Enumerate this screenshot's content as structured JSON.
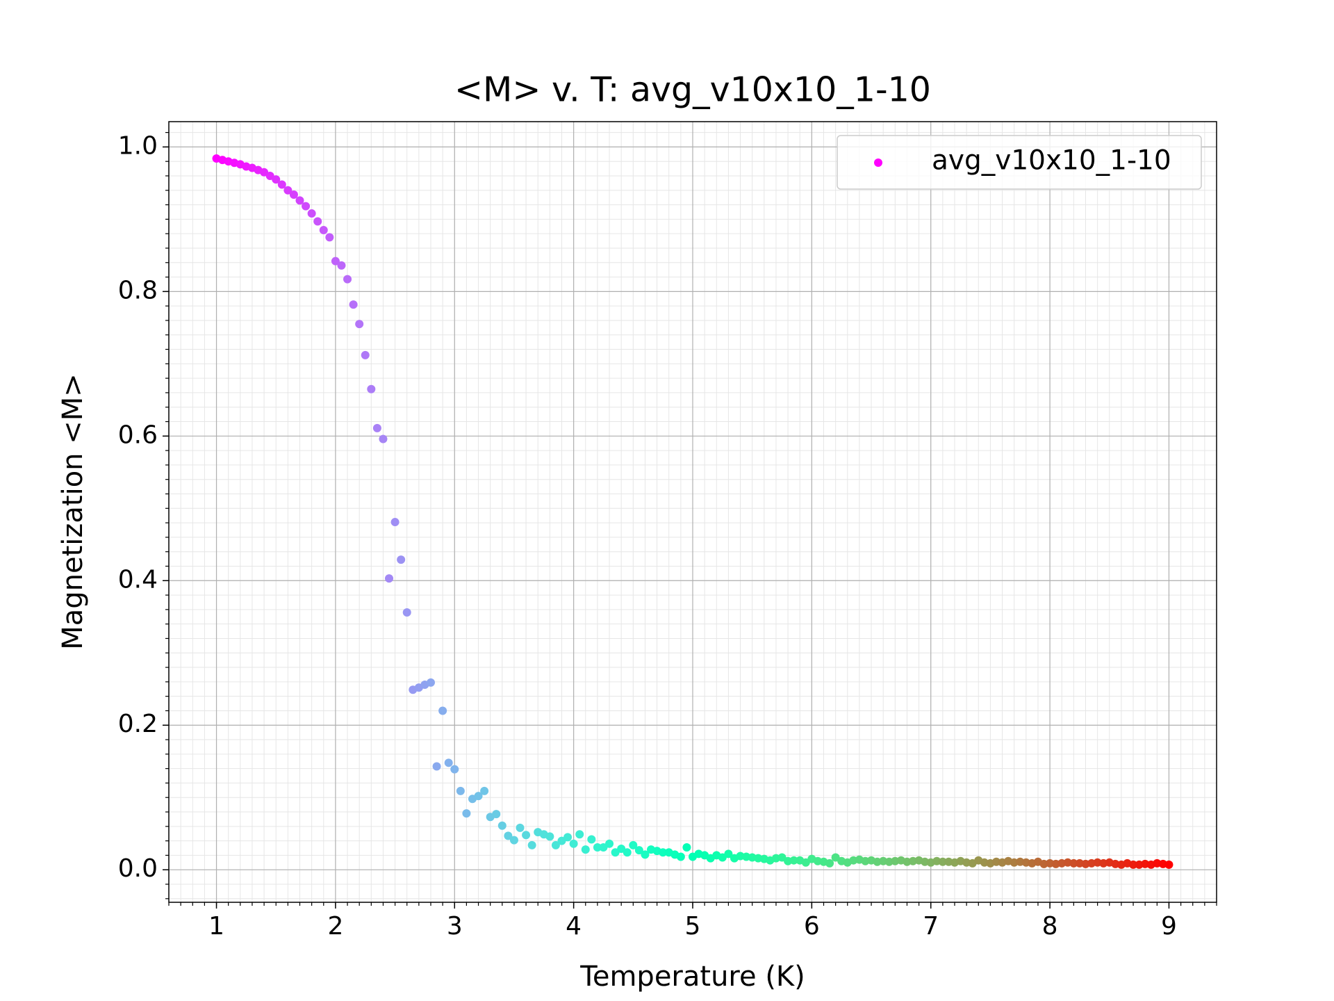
{
  "chart_data": {
    "type": "scatter",
    "title": "<M> v. T: avg_v10x10_1-10",
    "xlabel": "Temperature (K)",
    "ylabel": "Magnetization <M>",
    "legend": "upper right",
    "grid": true,
    "minor_grid": true,
    "xminor": 0.1,
    "yminor": 0.02,
    "colormap": "rainbow",
    "xlim": [
      0.6,
      9.4
    ],
    "ylim": [
      -0.045,
      1.035
    ],
    "xticks": [
      1,
      2,
      3,
      4,
      5,
      6,
      7,
      8,
      9
    ],
    "yticks": [
      {
        "value": 0,
        "label": "0.0"
      },
      0.2,
      0.4,
      0.6,
      0.8,
      {
        "value": 1,
        "label": "1.0"
      }
    ],
    "x": [
      1,
      1.05,
      1.1,
      1.15,
      1.2,
      1.25,
      1.3,
      1.35,
      1.4,
      1.45,
      1.5,
      1.55,
      1.6,
      1.65,
      1.7,
      1.75,
      1.8,
      1.85,
      1.9,
      1.95,
      2,
      2.05,
      2.1,
      2.15,
      2.2,
      2.25,
      2.3,
      2.35,
      2.4,
      2.45,
      2.5,
      2.55,
      2.6,
      2.65,
      2.7,
      2.75,
      2.8,
      2.85,
      2.9,
      2.95,
      3,
      3.05,
      3.1,
      3.15,
      3.2,
      3.25,
      3.3,
      3.35,
      3.4,
      3.45,
      3.5,
      3.55,
      3.6,
      3.65,
      3.7,
      3.75,
      3.8,
      3.85,
      3.9,
      3.95,
      4,
      4.05,
      4.1,
      4.15,
      4.2,
      4.25,
      4.3,
      4.35,
      4.4,
      4.45,
      4.5,
      4.55,
      4.6,
      4.65,
      4.7,
      4.75,
      4.8,
      4.85,
      4.9,
      4.95,
      5,
      5.05,
      5.1,
      5.15,
      5.2,
      5.25,
      5.3,
      5.35,
      5.4,
      5.45,
      5.5,
      5.55,
      5.6,
      5.65,
      5.7,
      5.75,
      5.8,
      5.85,
      5.9,
      5.95,
      6,
      6.05,
      6.1,
      6.15,
      6.2,
      6.25,
      6.3,
      6.35,
      6.4,
      6.45,
      6.5,
      6.55,
      6.6,
      6.65,
      6.7,
      6.75,
      6.8,
      6.85,
      6.9,
      6.95,
      7,
      7.05,
      7.1,
      7.15,
      7.2,
      7.25,
      7.3,
      7.35,
      7.4,
      7.45,
      7.5,
      7.55,
      7.6,
      7.65,
      7.7,
      7.75,
      7.8,
      7.85,
      7.9,
      7.95,
      8,
      8.05,
      8.1,
      8.15,
      8.2,
      8.25,
      8.3,
      8.35,
      8.4,
      8.45,
      8.5,
      8.55,
      8.6,
      8.65,
      8.7,
      8.75,
      8.8,
      8.85,
      8.9,
      8.95,
      9
    ],
    "series": [
      {
        "name": "avg_v10x10_1-10",
        "values": [
          0.984,
          0.982,
          0.98,
          0.978,
          0.976,
          0.973,
          0.971,
          0.968,
          0.965,
          0.96,
          0.955,
          0.948,
          0.94,
          0.934,
          0.926,
          0.918,
          0.908,
          0.897,
          0.885,
          0.875,
          0.842,
          0.836,
          0.817,
          0.782,
          0.755,
          0.712,
          0.665,
          0.611,
          0.596,
          0.403,
          0.481,
          0.429,
          0.356,
          0.249,
          0.252,
          0.256,
          0.259,
          0.143,
          0.22,
          0.148,
          0.139,
          0.109,
          0.078,
          0.098,
          0.102,
          0.109,
          0.073,
          0.077,
          0.061,
          0.047,
          0.041,
          0.058,
          0.048,
          0.034,
          0.052,
          0.049,
          0.046,
          0.034,
          0.04,
          0.045,
          0.036,
          0.049,
          0.028,
          0.042,
          0.031,
          0.031,
          0.036,
          0.024,
          0.029,
          0.024,
          0.034,
          0.027,
          0.021,
          0.028,
          0.026,
          0.024,
          0.024,
          0.021,
          0.018,
          0.031,
          0.018,
          0.022,
          0.02,
          0.016,
          0.02,
          0.017,
          0.022,
          0.016,
          0.019,
          0.018,
          0.017,
          0.016,
          0.015,
          0.013,
          0.016,
          0.017,
          0.012,
          0.013,
          0.013,
          0.01,
          0.015,
          0.012,
          0.011,
          0.009,
          0.017,
          0.012,
          0.01,
          0.013,
          0.014,
          0.012,
          0.013,
          0.011,
          0.012,
          0.011,
          0.012,
          0.013,
          0.011,
          0.012,
          0.013,
          0.011,
          0.01,
          0.012,
          0.011,
          0.011,
          0.01,
          0.012,
          0.01,
          0.009,
          0.013,
          0.01,
          0.009,
          0.011,
          0.01,
          0.012,
          0.01,
          0.011,
          0.01,
          0.009,
          0.011,
          0.008,
          0.009,
          0.008,
          0.009,
          0.01,
          0.009,
          0.009,
          0.008,
          0.009,
          0.01,
          0.009,
          0.01,
          0.008,
          0.007,
          0.009,
          0.007,
          0.007,
          0.008,
          0.007,
          0.009,
          0.008,
          0.007
        ]
      }
    ]
  }
}
